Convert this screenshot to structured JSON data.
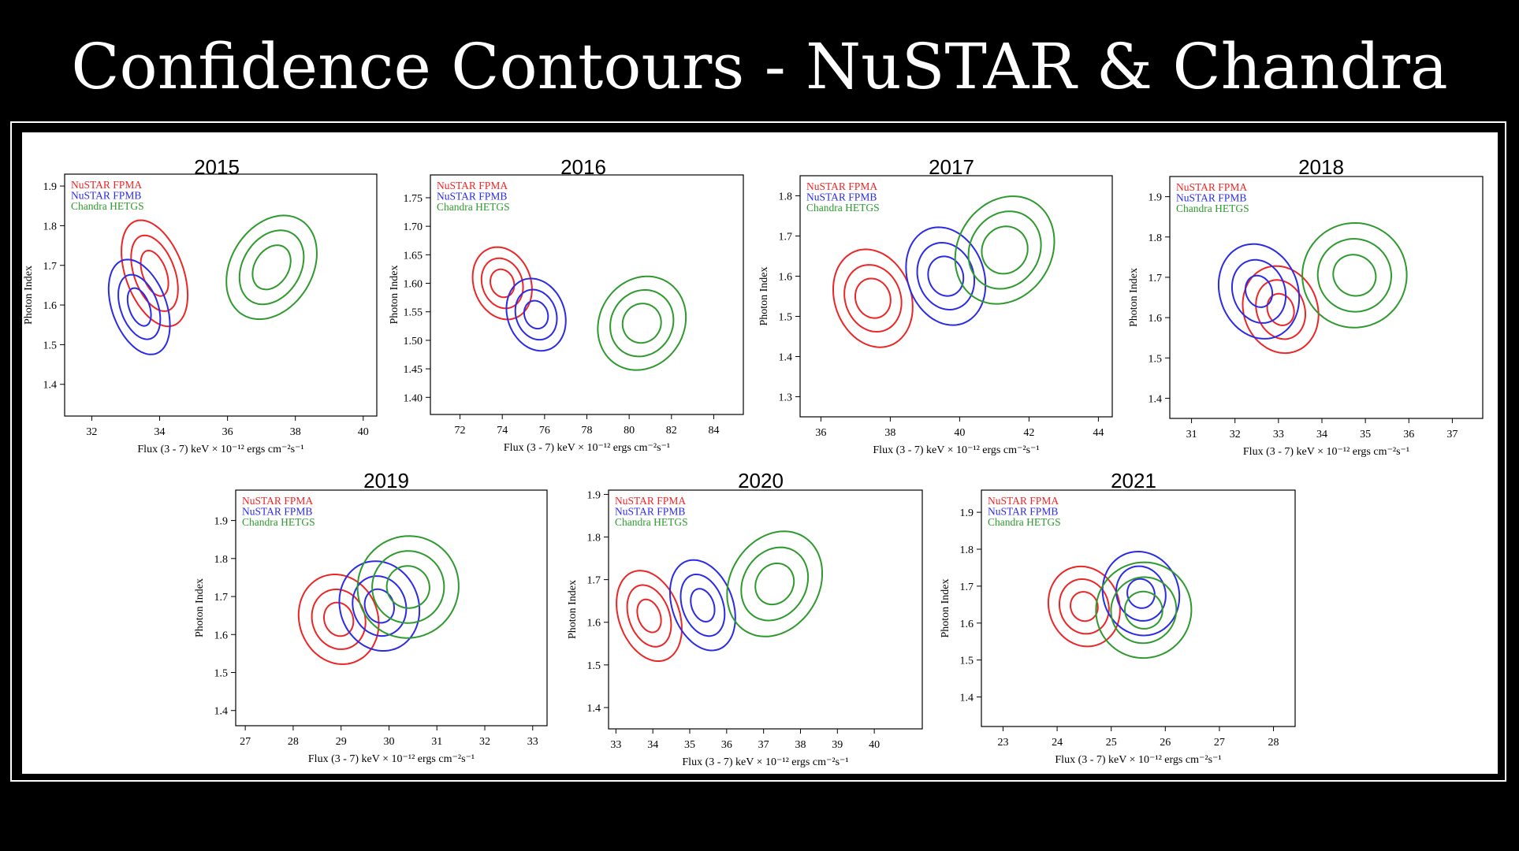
{
  "slide": {
    "title": "Confidence Contours - NuSTAR & Chandra"
  },
  "colors": {
    "NuSTAR FPMA": "#ec2626",
    "NuSTAR FPMB": "#2b2be6",
    "Chandra HETGS": "#2e9a2e"
  },
  "chart_data": [
    {
      "type": "contour",
      "title": "2015",
      "xlabel": "Flux (3 - 7) keV × 10⁻¹² ergs cm⁻²s⁻¹",
      "ylabel": "Photon Index",
      "xlim": [
        31.2,
        40.4
      ],
      "ylim": [
        1.32,
        1.93
      ],
      "xticks": [
        "32",
        "34",
        "36",
        "38",
        "40"
      ],
      "yticks": [
        "1.4",
        "1.5",
        "1.6",
        "1.7",
        "1.8",
        "1.9"
      ],
      "legend_position": "top-left",
      "series": [
        {
          "name": "NuSTAR FPMA",
          "center": [
            33.85,
            1.68
          ],
          "levels": [
            {
              "dx": 0.35,
              "dy": 0.06
            },
            {
              "dx": 0.6,
              "dy": 0.1
            },
            {
              "dx": 0.85,
              "dy": 0.14
            }
          ]
        },
        {
          "name": "NuSTAR FPMB",
          "center": [
            33.4,
            1.595
          ],
          "levels": [
            {
              "dx": 0.3,
              "dy": 0.05
            },
            {
              "dx": 0.55,
              "dy": 0.085
            },
            {
              "dx": 0.8,
              "dy": 0.125
            }
          ]
        },
        {
          "name": "Chandra HETGS",
          "center": [
            37.3,
            1.695
          ],
          "levels": [
            {
              "dx": 0.5,
              "dy": 0.06
            },
            {
              "dx": 0.85,
              "dy": 0.1
            },
            {
              "dx": 1.2,
              "dy": 0.14
            }
          ]
        }
      ]
    },
    {
      "type": "contour",
      "title": "2016",
      "xlabel": "Flux (3 - 7) keV × 10⁻¹² ergs cm⁻²s⁻¹",
      "ylabel": "Photon Index",
      "xlim": [
        70.6,
        85.4
      ],
      "ylim": [
        1.37,
        1.79
      ],
      "xticks": [
        "72",
        "74",
        "76",
        "78",
        "80",
        "82",
        "84"
      ],
      "yticks": [
        "1.40",
        "1.45",
        "1.50",
        "1.55",
        "1.60",
        "1.65",
        "1.70",
        "1.75"
      ],
      "legend_position": "top-left",
      "series": [
        {
          "name": "NuSTAR FPMA",
          "center": [
            74.0,
            1.6
          ],
          "levels": [
            {
              "dx": 0.55,
              "dy": 0.025
            },
            {
              "dx": 0.95,
              "dy": 0.045
            },
            {
              "dx": 1.35,
              "dy": 0.065
            }
          ]
        },
        {
          "name": "NuSTAR FPMB",
          "center": [
            75.6,
            1.545
          ],
          "levels": [
            {
              "dx": 0.55,
              "dy": 0.025
            },
            {
              "dx": 0.95,
              "dy": 0.045
            },
            {
              "dx": 1.35,
              "dy": 0.065
            }
          ]
        },
        {
          "name": "Chandra HETGS",
          "center": [
            80.6,
            1.53
          ],
          "levels": [
            {
              "dx": 0.9,
              "dy": 0.035
            },
            {
              "dx": 1.45,
              "dy": 0.06
            },
            {
              "dx": 2.0,
              "dy": 0.085
            }
          ]
        }
      ]
    },
    {
      "type": "contour",
      "title": "2017",
      "xlabel": "Flux (3 - 7) keV × 10⁻¹² ergs cm⁻²s⁻¹",
      "ylabel": "Photon Index",
      "xlim": [
        35.4,
        44.4
      ],
      "ylim": [
        1.25,
        1.85
      ],
      "xticks": [
        "36",
        "38",
        "40",
        "42",
        "44"
      ],
      "yticks": [
        "1.3",
        "1.4",
        "1.5",
        "1.6",
        "1.7",
        "1.8"
      ],
      "legend_position": "top-left",
      "series": [
        {
          "name": "NuSTAR FPMA",
          "center": [
            37.5,
            1.545
          ],
          "levels": [
            {
              "dx": 0.5,
              "dy": 0.05
            },
            {
              "dx": 0.8,
              "dy": 0.085
            },
            {
              "dx": 1.1,
              "dy": 0.125
            }
          ]
        },
        {
          "name": "NuSTAR FPMB",
          "center": [
            39.6,
            1.6
          ],
          "levels": [
            {
              "dx": 0.5,
              "dy": 0.05
            },
            {
              "dx": 0.8,
              "dy": 0.085
            },
            {
              "dx": 1.1,
              "dy": 0.125
            }
          ]
        },
        {
          "name": "Chandra HETGS",
          "center": [
            41.3,
            1.665
          ],
          "levels": [
            {
              "dx": 0.65,
              "dy": 0.06
            },
            {
              "dx": 1.0,
              "dy": 0.1
            },
            {
              "dx": 1.35,
              "dy": 0.14
            }
          ]
        }
      ]
    },
    {
      "type": "contour",
      "title": "2018",
      "xlabel": "Flux (3 - 7) keV × 10⁻¹² ergs cm⁻²s⁻¹",
      "ylabel": "Photon Index",
      "xlim": [
        30.5,
        37.7
      ],
      "ylim": [
        1.35,
        1.95
      ],
      "xticks": [
        "31",
        "32",
        "33",
        "34",
        "35",
        "36",
        "37"
      ],
      "yticks": [
        "1.4",
        "1.5",
        "1.6",
        "1.7",
        "1.8",
        "1.9"
      ],
      "legend_position": "top-left",
      "series": [
        {
          "name": "NuSTAR FPMA",
          "center": [
            33.05,
            1.62
          ],
          "levels": [
            {
              "dx": 0.3,
              "dy": 0.04
            },
            {
              "dx": 0.55,
              "dy": 0.075
            },
            {
              "dx": 0.85,
              "dy": 0.11
            }
          ]
        },
        {
          "name": "NuSTAR FPMB",
          "center": [
            32.55,
            1.665
          ],
          "levels": [
            {
              "dx": 0.3,
              "dy": 0.04
            },
            {
              "dx": 0.6,
              "dy": 0.08
            },
            {
              "dx": 0.9,
              "dy": 0.12
            }
          ]
        },
        {
          "name": "Chandra HETGS",
          "center": [
            34.75,
            1.705
          ],
          "levels": [
            {
              "dx": 0.5,
              "dy": 0.05
            },
            {
              "dx": 0.85,
              "dy": 0.09
            },
            {
              "dx": 1.2,
              "dy": 0.13
            }
          ]
        }
      ]
    },
    {
      "type": "contour",
      "title": "2019",
      "xlabel": "Flux (3 - 7) keV × 10⁻¹² ergs cm⁻²s⁻¹",
      "ylabel": "Photon Index",
      "xlim": [
        26.8,
        33.3
      ],
      "ylim": [
        1.36,
        1.98
      ],
      "xticks": [
        "27",
        "28",
        "29",
        "30",
        "31",
        "32",
        "33"
      ],
      "yticks": [
        "1.4",
        "1.5",
        "1.6",
        "1.7",
        "1.8",
        "1.9"
      ],
      "legend_position": "top-left",
      "series": [
        {
          "name": "NuSTAR FPMA",
          "center": [
            28.95,
            1.64
          ],
          "levels": [
            {
              "dx": 0.3,
              "dy": 0.045
            },
            {
              "dx": 0.55,
              "dy": 0.08
            },
            {
              "dx": 0.82,
              "dy": 0.12
            }
          ]
        },
        {
          "name": "NuSTAR FPMB",
          "center": [
            29.8,
            1.675
          ],
          "levels": [
            {
              "dx": 0.3,
              "dy": 0.045
            },
            {
              "dx": 0.55,
              "dy": 0.08
            },
            {
              "dx": 0.82,
              "dy": 0.12
            }
          ]
        },
        {
          "name": "Chandra HETGS",
          "center": [
            30.4,
            1.725
          ],
          "levels": [
            {
              "dx": 0.45,
              "dy": 0.055
            },
            {
              "dx": 0.75,
              "dy": 0.095
            },
            {
              "dx": 1.05,
              "dy": 0.135
            }
          ]
        }
      ]
    },
    {
      "type": "contour",
      "title": "2020",
      "xlabel": "Flux (3 - 7) keV × 10⁻¹² ergs cm⁻²s⁻¹",
      "ylabel": "Photon Index",
      "xlim": [
        32.8,
        41.3
      ],
      "ylim": [
        1.35,
        1.91
      ],
      "xticks": [
        "33",
        "34",
        "35",
        "36",
        "37",
        "38",
        "39",
        "40"
      ],
      "yticks": [
        "1.4",
        "1.5",
        "1.6",
        "1.7",
        "1.8",
        "1.9"
      ],
      "legend_position": "top-left",
      "series": [
        {
          "name": "NuSTAR FPMA",
          "center": [
            33.9,
            1.615
          ],
          "levels": [
            {
              "dx": 0.3,
              "dy": 0.04
            },
            {
              "dx": 0.55,
              "dy": 0.075
            },
            {
              "dx": 0.82,
              "dy": 0.11
            }
          ]
        },
        {
          "name": "NuSTAR FPMB",
          "center": [
            35.35,
            1.64
          ],
          "levels": [
            {
              "dx": 0.3,
              "dy": 0.04
            },
            {
              "dx": 0.55,
              "dy": 0.075
            },
            {
              "dx": 0.82,
              "dy": 0.11
            }
          ]
        },
        {
          "name": "Chandra HETGS",
          "center": [
            37.3,
            1.69
          ],
          "levels": [
            {
              "dx": 0.5,
              "dy": 0.05
            },
            {
              "dx": 0.85,
              "dy": 0.09
            },
            {
              "dx": 1.2,
              "dy": 0.13
            }
          ]
        }
      ]
    },
    {
      "type": "contour",
      "title": "2021",
      "xlabel": "Flux (3 - 7) keV × 10⁻¹² ergs cm⁻²s⁻¹",
      "ylabel": "Photon Index",
      "xlim": [
        22.6,
        28.4
      ],
      "ylim": [
        1.32,
        1.96
      ],
      "xticks": [
        "23",
        "24",
        "25",
        "26",
        "27",
        "28"
      ],
      "yticks": [
        "1.4",
        "1.5",
        "1.6",
        "1.7",
        "1.8",
        "1.9"
      ],
      "legend_position": "top-left",
      "series": [
        {
          "name": "NuSTAR FPMA",
          "center": [
            24.5,
            1.645
          ],
          "levels": [
            {
              "dx": 0.25,
              "dy": 0.04
            },
            {
              "dx": 0.45,
              "dy": 0.075
            },
            {
              "dx": 0.65,
              "dy": 0.11
            }
          ]
        },
        {
          "name": "NuSTAR FPMB",
          "center": [
            25.55,
            1.68
          ],
          "levels": [
            {
              "dx": 0.25,
              "dy": 0.04
            },
            {
              "dx": 0.45,
              "dy": 0.075
            },
            {
              "dx": 0.7,
              "dy": 0.115
            }
          ]
        },
        {
          "name": "Chandra HETGS",
          "center": [
            25.6,
            1.635
          ],
          "levels": [
            {
              "dx": 0.35,
              "dy": 0.05
            },
            {
              "dx": 0.6,
              "dy": 0.09
            },
            {
              "dx": 0.88,
              "dy": 0.13
            }
          ]
        }
      ]
    }
  ]
}
